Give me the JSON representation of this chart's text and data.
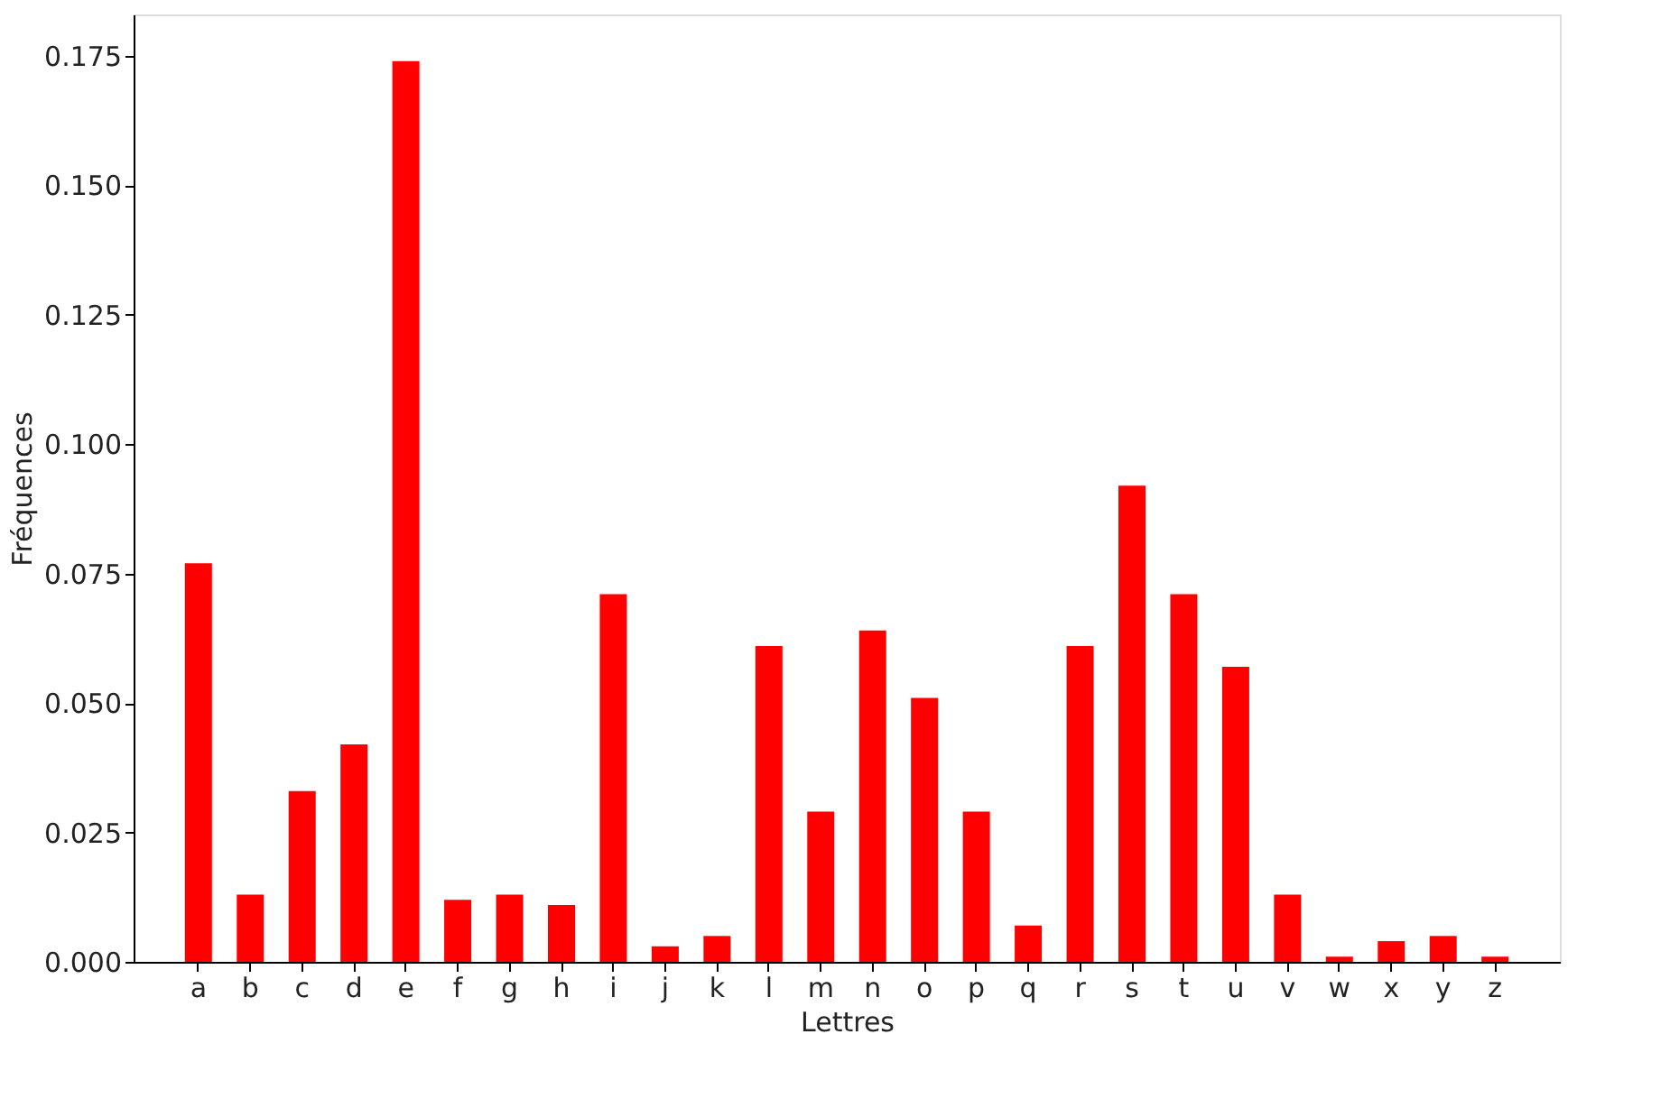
{
  "chart_data": {
    "type": "bar",
    "xlabel": "Lettres",
    "ylabel": "Fréquences",
    "categories": [
      "a",
      "b",
      "c",
      "d",
      "e",
      "f",
      "g",
      "h",
      "i",
      "j",
      "k",
      "l",
      "m",
      "n",
      "o",
      "p",
      "q",
      "r",
      "s",
      "t",
      "u",
      "v",
      "w",
      "x",
      "y",
      "z"
    ],
    "values": [
      0.077,
      0.013,
      0.033,
      0.042,
      0.174,
      0.012,
      0.013,
      0.011,
      0.071,
      0.003,
      0.005,
      0.061,
      0.029,
      0.064,
      0.051,
      0.029,
      0.007,
      0.061,
      0.092,
      0.071,
      0.057,
      0.013,
      0.001,
      0.004,
      0.005,
      0.001
    ],
    "color": "#ff0000",
    "ylim": [
      0,
      0.183
    ],
    "yticks": [
      {
        "value": 0,
        "label": "0.000"
      },
      0.025,
      {
        "value": 0.05,
        "label": "0.050"
      },
      0.075,
      {
        "value": 0.1,
        "label": "0.100"
      },
      0.125,
      {
        "value": 0.15,
        "label": "0.150"
      },
      0.175
    ],
    "grid": false
  }
}
